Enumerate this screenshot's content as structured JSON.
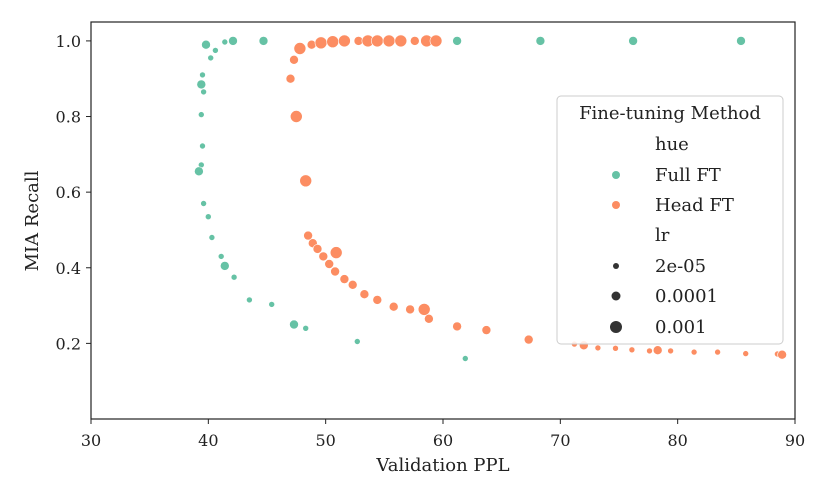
{
  "chart_data": {
    "type": "scatter",
    "xlabel": "Validation PPL",
    "ylabel": "MIA Recall",
    "xlim": [
      30,
      90
    ],
    "ylim": [
      0,
      1.05
    ],
    "xticks": [
      "30",
      "40",
      "50",
      "60",
      "70",
      "80",
      "90"
    ],
    "yticks": [
      "0.2",
      "0.4",
      "0.6",
      "0.8",
      "1.0"
    ],
    "grid": false,
    "legend": {
      "title": "Fine-tuning Method",
      "placement": "right",
      "hue_header": "hue",
      "size_header": "lr",
      "hue_entries": [
        "Full FT",
        "Head FT"
      ],
      "size_entries": [
        "2e-05",
        "0.0001",
        "0.001"
      ]
    },
    "colors": {
      "Full FT": "#66c2a5",
      "Head FT": "#fc8d62"
    },
    "series": [
      {
        "name": "Full FT",
        "points": [
          {
            "x": 39.8,
            "y": 0.99,
            "lr": "0.0001"
          },
          {
            "x": 40.6,
            "y": 0.975,
            "lr": "2e-05"
          },
          {
            "x": 41.4,
            "y": 0.997,
            "lr": "2e-05"
          },
          {
            "x": 42.1,
            "y": 1.0,
            "lr": "0.0001"
          },
          {
            "x": 44.7,
            "y": 1.0,
            "lr": "0.0001"
          },
          {
            "x": 61.2,
            "y": 1.0,
            "lr": "0.0001"
          },
          {
            "x": 68.3,
            "y": 1.0,
            "lr": "0.0001"
          },
          {
            "x": 76.2,
            "y": 1.0,
            "lr": "0.0001"
          },
          {
            "x": 85.4,
            "y": 1.0,
            "lr": "0.0001"
          },
          {
            "x": 40.2,
            "y": 0.955,
            "lr": "2e-05"
          },
          {
            "x": 39.5,
            "y": 0.91,
            "lr": "2e-05"
          },
          {
            "x": 39.4,
            "y": 0.885,
            "lr": "0.0001"
          },
          {
            "x": 39.6,
            "y": 0.865,
            "lr": "2e-05"
          },
          {
            "x": 39.4,
            "y": 0.805,
            "lr": "2e-05"
          },
          {
            "x": 39.5,
            "y": 0.722,
            "lr": "2e-05"
          },
          {
            "x": 39.4,
            "y": 0.672,
            "lr": "2e-05"
          },
          {
            "x": 39.2,
            "y": 0.655,
            "lr": "0.0001"
          },
          {
            "x": 39.6,
            "y": 0.57,
            "lr": "2e-05"
          },
          {
            "x": 40.0,
            "y": 0.535,
            "lr": "2e-05"
          },
          {
            "x": 40.3,
            "y": 0.48,
            "lr": "2e-05"
          },
          {
            "x": 41.1,
            "y": 0.43,
            "lr": "2e-05"
          },
          {
            "x": 41.4,
            "y": 0.405,
            "lr": "0.0001"
          },
          {
            "x": 42.2,
            "y": 0.375,
            "lr": "2e-05"
          },
          {
            "x": 43.5,
            "y": 0.315,
            "lr": "2e-05"
          },
          {
            "x": 45.4,
            "y": 0.303,
            "lr": "2e-05"
          },
          {
            "x": 47.3,
            "y": 0.25,
            "lr": "0.0001"
          },
          {
            "x": 48.3,
            "y": 0.24,
            "lr": "2e-05"
          },
          {
            "x": 52.7,
            "y": 0.205,
            "lr": "2e-05"
          },
          {
            "x": 61.9,
            "y": 0.16,
            "lr": "2e-05"
          }
        ]
      },
      {
        "name": "Head FT",
        "points": [
          {
            "x": 47.0,
            "y": 0.9,
            "lr": "0.0001"
          },
          {
            "x": 47.3,
            "y": 0.95,
            "lr": "0.0001"
          },
          {
            "x": 47.8,
            "y": 0.98,
            "lr": "0.001"
          },
          {
            "x": 48.8,
            "y": 0.99,
            "lr": "0.0001"
          },
          {
            "x": 49.6,
            "y": 0.995,
            "lr": "0.001"
          },
          {
            "x": 50.6,
            "y": 0.998,
            "lr": "0.001"
          },
          {
            "x": 51.6,
            "y": 1.0,
            "lr": "0.001"
          },
          {
            "x": 52.8,
            "y": 1.0,
            "lr": "0.0001"
          },
          {
            "x": 53.6,
            "y": 1.0,
            "lr": "0.001"
          },
          {
            "x": 54.4,
            "y": 1.0,
            "lr": "0.001"
          },
          {
            "x": 55.4,
            "y": 1.0,
            "lr": "0.001"
          },
          {
            "x": 56.4,
            "y": 1.0,
            "lr": "0.001"
          },
          {
            "x": 57.6,
            "y": 1.0,
            "lr": "0.0001"
          },
          {
            "x": 58.6,
            "y": 1.0,
            "lr": "0.001"
          },
          {
            "x": 59.4,
            "y": 1.0,
            "lr": "0.001"
          },
          {
            "x": 47.5,
            "y": 0.8,
            "lr": "0.001"
          },
          {
            "x": 48.3,
            "y": 0.63,
            "lr": "0.001"
          },
          {
            "x": 48.5,
            "y": 0.485,
            "lr": "0.0001"
          },
          {
            "x": 48.9,
            "y": 0.465,
            "lr": "0.0001"
          },
          {
            "x": 49.3,
            "y": 0.45,
            "lr": "0.0001"
          },
          {
            "x": 49.8,
            "y": 0.43,
            "lr": "0.0001"
          },
          {
            "x": 50.3,
            "y": 0.41,
            "lr": "0.0001"
          },
          {
            "x": 50.9,
            "y": 0.44,
            "lr": "0.001"
          },
          {
            "x": 50.8,
            "y": 0.39,
            "lr": "0.0001"
          },
          {
            "x": 51.6,
            "y": 0.37,
            "lr": "0.0001"
          },
          {
            "x": 52.3,
            "y": 0.355,
            "lr": "0.0001"
          },
          {
            "x": 53.3,
            "y": 0.33,
            "lr": "0.0001"
          },
          {
            "x": 54.4,
            "y": 0.315,
            "lr": "0.0001"
          },
          {
            "x": 55.8,
            "y": 0.297,
            "lr": "0.0001"
          },
          {
            "x": 57.2,
            "y": 0.29,
            "lr": "0.0001"
          },
          {
            "x": 58.4,
            "y": 0.29,
            "lr": "0.001"
          },
          {
            "x": 58.8,
            "y": 0.265,
            "lr": "0.0001"
          },
          {
            "x": 61.2,
            "y": 0.245,
            "lr": "0.0001"
          },
          {
            "x": 63.7,
            "y": 0.235,
            "lr": "0.0001"
          },
          {
            "x": 67.3,
            "y": 0.21,
            "lr": "0.0001"
          },
          {
            "x": 71.2,
            "y": 0.198,
            "lr": "2e-05"
          },
          {
            "x": 72.0,
            "y": 0.195,
            "lr": "0.0001"
          },
          {
            "x": 73.2,
            "y": 0.188,
            "lr": "2e-05"
          },
          {
            "x": 74.7,
            "y": 0.187,
            "lr": "2e-05"
          },
          {
            "x": 76.1,
            "y": 0.183,
            "lr": "2e-05"
          },
          {
            "x": 77.6,
            "y": 0.18,
            "lr": "2e-05"
          },
          {
            "x": 78.3,
            "y": 0.182,
            "lr": "0.0001"
          },
          {
            "x": 79.4,
            "y": 0.18,
            "lr": "2e-05"
          },
          {
            "x": 81.4,
            "y": 0.177,
            "lr": "2e-05"
          },
          {
            "x": 83.4,
            "y": 0.177,
            "lr": "2e-05"
          },
          {
            "x": 85.8,
            "y": 0.173,
            "lr": "2e-05"
          },
          {
            "x": 88.5,
            "y": 0.172,
            "lr": "2e-05"
          },
          {
            "x": 88.9,
            "y": 0.17,
            "lr": "0.0001"
          }
        ]
      }
    ]
  }
}
